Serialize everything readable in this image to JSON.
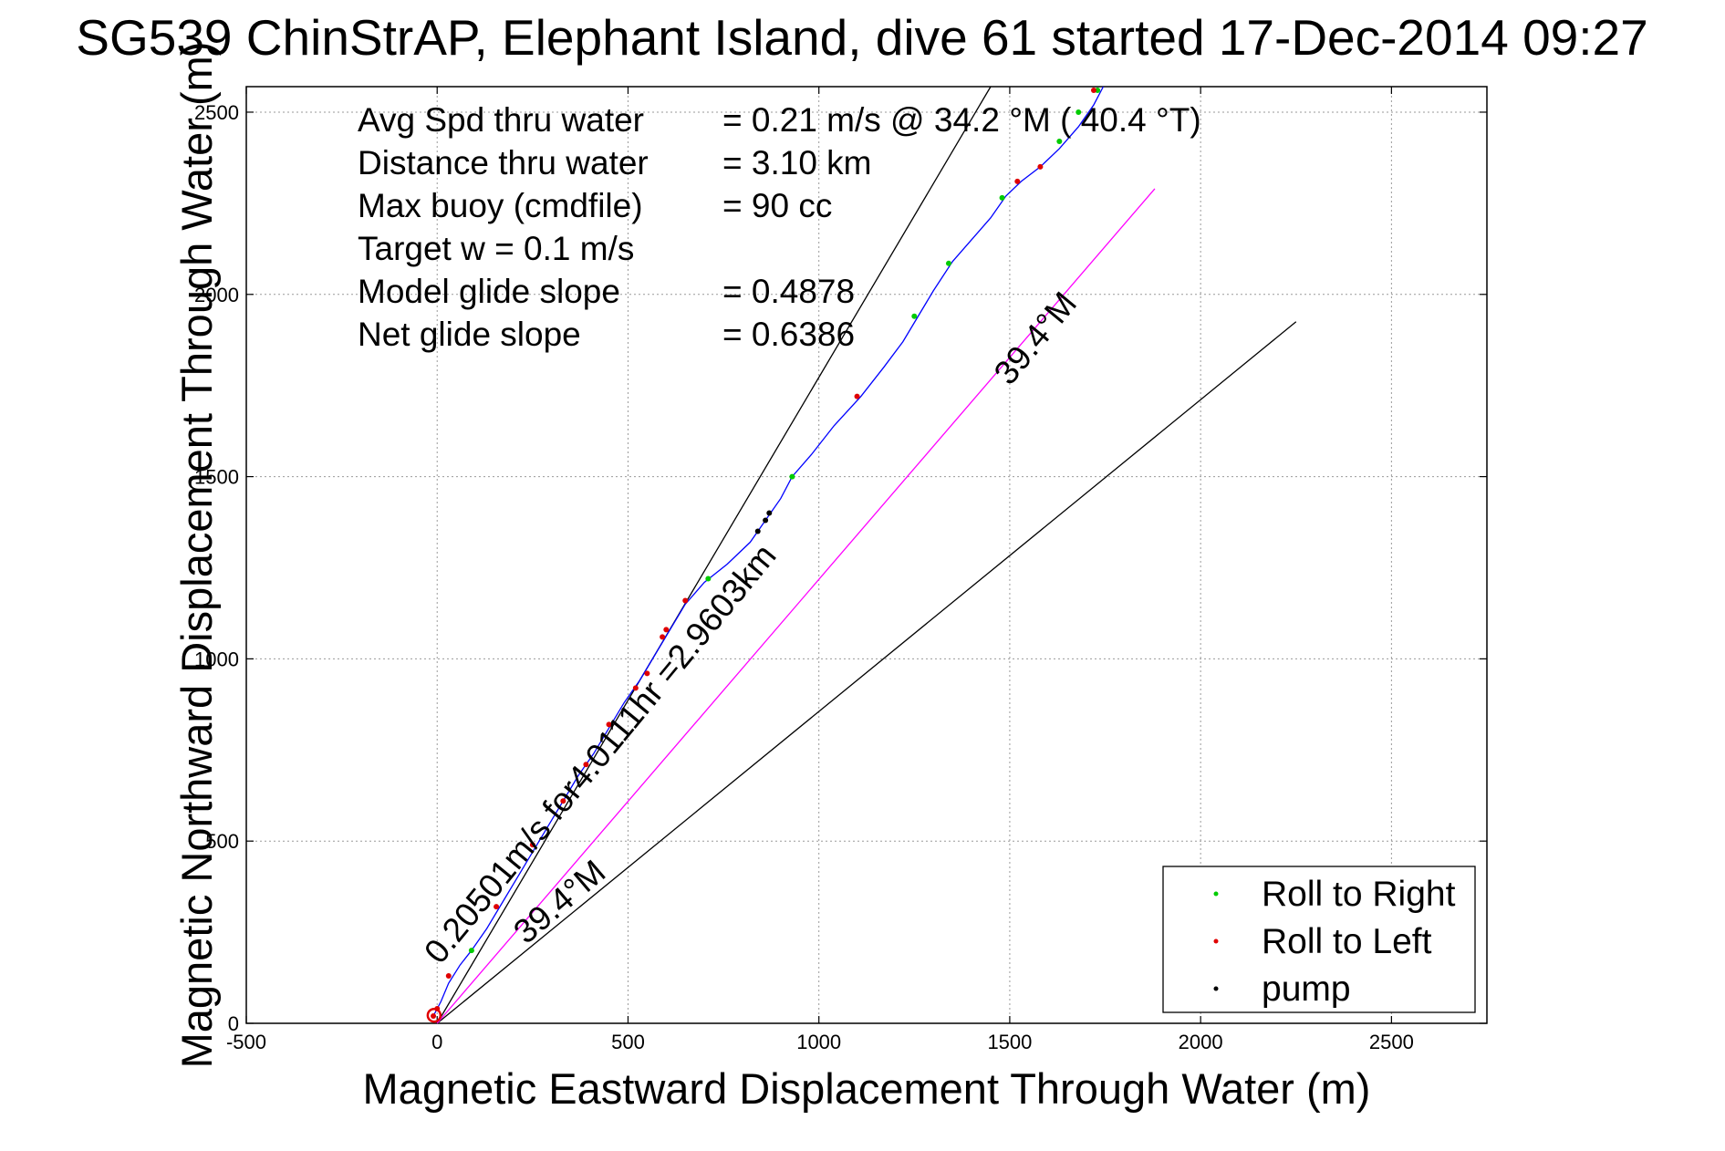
{
  "chart_data": {
    "type": "scatter",
    "title": "SG539 ChinStrAP, Elephant Island, dive 61 started 17-Dec-2014 09:27",
    "xlabel": "Magnetic Eastward Displacement Through Water (m)",
    "ylabel": "Magnetic Northward Displacement Through Water (m)",
    "xlim": [
      -500,
      2750
    ],
    "ylim": [
      0,
      2570
    ],
    "xticks": [
      "-500",
      "0",
      "500",
      "1000",
      "1500",
      "2000",
      "2500"
    ],
    "xtick_values": [
      -500,
      0,
      500,
      1000,
      1500,
      2000,
      2500
    ],
    "yticks": [
      "0",
      "500",
      "1000",
      "1500",
      "2000",
      "2500"
    ],
    "ytick_values": [
      0,
      500,
      1000,
      1500,
      2000,
      2500
    ],
    "grid": true,
    "legend_position": "bottom-right",
    "info_lines": [
      {
        "label": "Avg Spd thru water",
        "value": "=  0.21 m/s @  34.2 °M ( 40.4 °T)"
      },
      {
        "label": "Distance thru water",
        "value": "=  3.10 km"
      },
      {
        "label": "Max buoy (cmdfile)",
        "value": "= 90 cc"
      },
      {
        "label": "Target w    = 0.1 m/s",
        "value": ""
      },
      {
        "label": "Model glide slope",
        "value": "= 0.4878"
      },
      {
        "label": "Net glide slope",
        "value": "= 0.6386"
      }
    ],
    "series": [
      {
        "name": "track",
        "color": "#0000ff",
        "x": [
          -10,
          10,
          30,
          60,
          90,
          130,
          170,
          210,
          250,
          290,
          330,
          370,
          410,
          450,
          490,
          530,
          570,
          610,
          650,
          700,
          760,
          820,
          860,
          900,
          930,
          980,
          1040,
          1110,
          1170,
          1220,
          1260,
          1300,
          1350,
          1400,
          1450,
          1490,
          1530,
          1580,
          1630,
          1680,
          1720,
          1745
        ],
        "y": [
          20,
          60,
          110,
          160,
          200,
          260,
          330,
          400,
          470,
          540,
          610,
          680,
          740,
          810,
          880,
          940,
          1010,
          1080,
          1150,
          1210,
          1260,
          1320,
          1380,
          1440,
          1500,
          1560,
          1640,
          1720,
          1800,
          1870,
          1940,
          2010,
          2090,
          2150,
          2210,
          2270,
          2310,
          2350,
          2400,
          2460,
          2520,
          2570
        ]
      },
      {
        "name": "Roll to Right",
        "color": "#00cc00",
        "x": [
          90,
          710,
          930,
          1250,
          1340,
          1480,
          1630,
          1680,
          1730
        ],
        "y": [
          200,
          1220,
          1500,
          1940,
          2085,
          2265,
          2420,
          2500,
          2560
        ]
      },
      {
        "name": "Roll to Left",
        "color": "#e00000",
        "x": [
          -10,
          0,
          30,
          155,
          250,
          330,
          390,
          450,
          520,
          550,
          590,
          600,
          650,
          1100,
          1520,
          1580,
          1720
        ],
        "y": [
          20,
          40,
          130,
          320,
          490,
          610,
          710,
          820,
          920,
          960,
          1060,
          1080,
          1160,
          1720,
          2310,
          2350,
          2560
        ]
      },
      {
        "name": "pump",
        "color": "#000000",
        "x": [
          840,
          860,
          870
        ],
        "y": [
          1350,
          1380,
          1400
        ]
      }
    ],
    "lines": [
      {
        "name": "line-steep",
        "color": "#000000",
        "x": [
          0,
          1450
        ],
        "y": [
          0,
          2570
        ]
      },
      {
        "name": "line-shallow",
        "color": "#000000",
        "x": [
          0,
          2250
        ],
        "y": [
          0,
          1925
        ]
      },
      {
        "name": "line-net",
        "color": "#ff00ff",
        "x": [
          0,
          1880
        ],
        "y": [
          0,
          2290
        ]
      }
    ],
    "annotations": [
      {
        "text": "0.20501m/s for4.0111hr =2.9603km",
        "x": 450,
        "y": 720,
        "rotate": -50.5
      },
      {
        "text": "39.4°M",
        "x": 1590,
        "y": 1860,
        "rotate": -50.5
      },
      {
        "text": "39.4°M",
        "x": 340,
        "y": 310,
        "rotate": -40.5
      }
    ]
  }
}
